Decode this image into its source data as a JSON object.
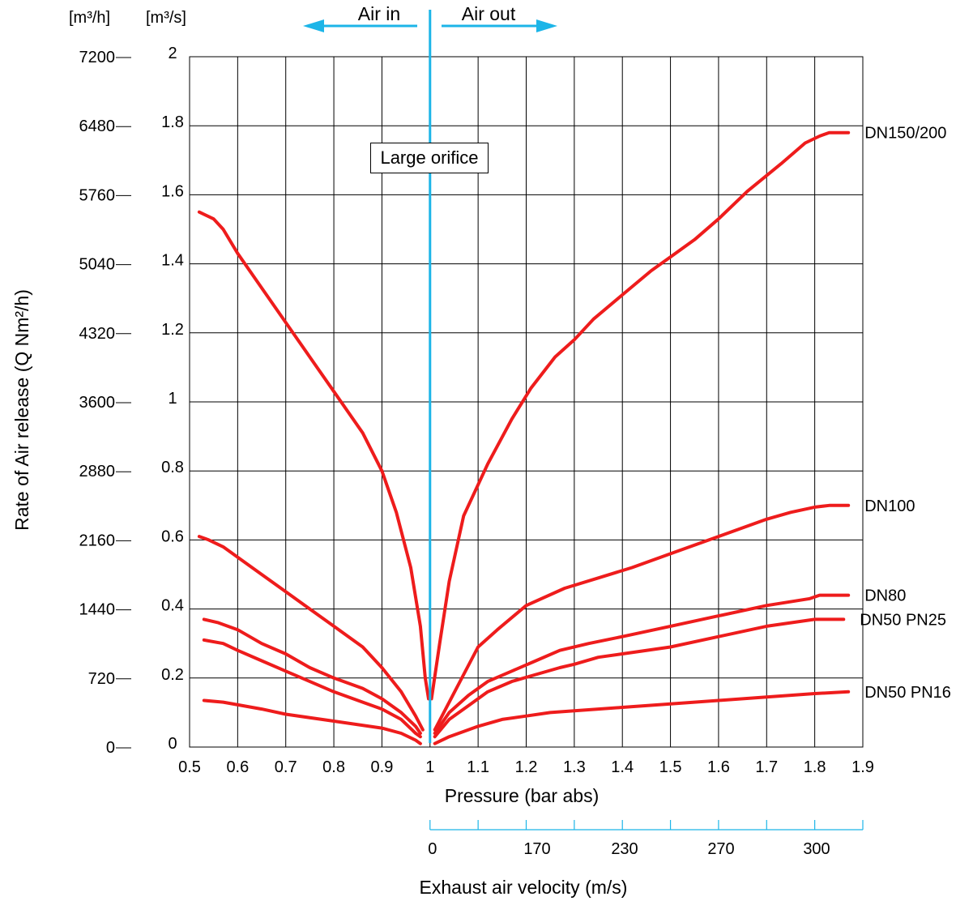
{
  "chart_data": {
    "type": "line",
    "xlabel": "Pressure (bar abs)",
    "ylabel": "Rate of Air release (Q Nm²/h)",
    "xlim": [
      0.5,
      1.9
    ],
    "ylim": [
      0,
      2
    ],
    "grid": true,
    "x_ticks": [
      "0.5",
      "0.6",
      "0.7",
      "0.8",
      "0.9",
      "1",
      "1.1",
      "1.2",
      "1.3",
      "1.4",
      "1.5",
      "1.6",
      "1.7",
      "1.8",
      "1.9"
    ],
    "y_ticks_m3s": [
      "0",
      "0.2",
      "0.4",
      "0.6",
      "0.8",
      "1",
      "1.2",
      "1.4",
      "1.6",
      "1.8",
      "2"
    ],
    "y_ticks_m3h": [
      "0",
      "720",
      "1440",
      "2160",
      "2880",
      "3600",
      "4320",
      "5040",
      "5760",
      "6480",
      "7200"
    ],
    "y_units_m3h": "[m³/h]",
    "y_units_m3s": "[m³/s]",
    "direction_in": "Air in",
    "direction_out": "Air out",
    "annotation": "Large orifice",
    "velocity_axis": {
      "label": "Exhaust air velocity (m/s)",
      "tick_labels": [
        "0",
        "170",
        "230",
        "270",
        "300"
      ]
    },
    "series": [
      {
        "name": "DN150/200",
        "color": "#ee1c1c",
        "intake": [
          [
            0.52,
            1.55
          ],
          [
            0.55,
            1.53
          ],
          [
            0.57,
            1.5
          ],
          [
            0.6,
            1.43
          ],
          [
            0.65,
            1.33
          ],
          [
            0.7,
            1.23
          ],
          [
            0.75,
            1.13
          ],
          [
            0.8,
            1.03
          ],
          [
            0.86,
            0.91
          ],
          [
            0.9,
            0.8
          ],
          [
            0.93,
            0.68
          ],
          [
            0.96,
            0.52
          ],
          [
            0.98,
            0.35
          ],
          [
            0.99,
            0.2
          ],
          [
            0.997,
            0.14
          ]
        ],
        "exhaust": [
          [
            1.003,
            0.14
          ],
          [
            1.02,
            0.3
          ],
          [
            1.04,
            0.48
          ],
          [
            1.07,
            0.67
          ],
          [
            1.12,
            0.82
          ],
          [
            1.17,
            0.95
          ],
          [
            1.21,
            1.04
          ],
          [
            1.26,
            1.13
          ],
          [
            1.3,
            1.18
          ],
          [
            1.34,
            1.24
          ],
          [
            1.4,
            1.31
          ],
          [
            1.46,
            1.38
          ],
          [
            1.5,
            1.42
          ],
          [
            1.55,
            1.47
          ],
          [
            1.6,
            1.53
          ],
          [
            1.66,
            1.61
          ],
          [
            1.73,
            1.69
          ],
          [
            1.78,
            1.75
          ],
          [
            1.81,
            1.77
          ],
          [
            1.83,
            1.78
          ],
          [
            1.87,
            1.78
          ]
        ]
      },
      {
        "name": "DN100",
        "color": "#ee1c1c",
        "intake": [
          [
            0.52,
            0.61
          ],
          [
            0.54,
            0.6
          ],
          [
            0.57,
            0.58
          ],
          [
            0.6,
            0.55
          ],
          [
            0.65,
            0.5
          ],
          [
            0.7,
            0.45
          ],
          [
            0.75,
            0.4
          ],
          [
            0.8,
            0.35
          ],
          [
            0.86,
            0.29
          ],
          [
            0.9,
            0.23
          ],
          [
            0.94,
            0.16
          ],
          [
            0.97,
            0.09
          ],
          [
            0.985,
            0.05
          ]
        ],
        "exhaust": [
          [
            1.01,
            0.05
          ],
          [
            1.04,
            0.13
          ],
          [
            1.07,
            0.21
          ],
          [
            1.1,
            0.29
          ],
          [
            1.14,
            0.34
          ],
          [
            1.2,
            0.41
          ],
          [
            1.28,
            0.46
          ],
          [
            1.35,
            0.49
          ],
          [
            1.42,
            0.52
          ],
          [
            1.5,
            0.56
          ],
          [
            1.6,
            0.61
          ],
          [
            1.7,
            0.66
          ],
          [
            1.75,
            0.68
          ],
          [
            1.8,
            0.695
          ],
          [
            1.83,
            0.7
          ],
          [
            1.87,
            0.7
          ]
        ]
      },
      {
        "name": "DN80",
        "color": "#ee1c1c",
        "intake": [
          [
            0.53,
            0.37
          ],
          [
            0.56,
            0.36
          ],
          [
            0.6,
            0.34
          ],
          [
            0.65,
            0.3
          ],
          [
            0.7,
            0.27
          ],
          [
            0.75,
            0.23
          ],
          [
            0.8,
            0.2
          ],
          [
            0.86,
            0.17
          ],
          [
            0.9,
            0.14
          ],
          [
            0.94,
            0.1
          ],
          [
            0.97,
            0.06
          ],
          [
            0.98,
            0.04
          ]
        ],
        "exhaust": [
          [
            1.01,
            0.04
          ],
          [
            1.04,
            0.1
          ],
          [
            1.08,
            0.15
          ],
          [
            1.12,
            0.19
          ],
          [
            1.17,
            0.22
          ],
          [
            1.22,
            0.25
          ],
          [
            1.27,
            0.28
          ],
          [
            1.33,
            0.3
          ],
          [
            1.4,
            0.32
          ],
          [
            1.5,
            0.35
          ],
          [
            1.6,
            0.38
          ],
          [
            1.7,
            0.41
          ],
          [
            1.79,
            0.43
          ],
          [
            1.81,
            0.44
          ],
          [
            1.87,
            0.44
          ]
        ]
      },
      {
        "name": "DN50 PN25",
        "color": "#ee1c1c",
        "intake": [
          [
            0.53,
            0.31
          ],
          [
            0.57,
            0.3
          ],
          [
            0.6,
            0.28
          ],
          [
            0.65,
            0.25
          ],
          [
            0.7,
            0.22
          ],
          [
            0.75,
            0.19
          ],
          [
            0.8,
            0.16
          ],
          [
            0.86,
            0.13
          ],
          [
            0.9,
            0.11
          ],
          [
            0.94,
            0.08
          ],
          [
            0.97,
            0.04
          ],
          [
            0.98,
            0.03
          ]
        ],
        "exhaust": [
          [
            1.01,
            0.03
          ],
          [
            1.04,
            0.08
          ],
          [
            1.08,
            0.12
          ],
          [
            1.12,
            0.16
          ],
          [
            1.17,
            0.19
          ],
          [
            1.22,
            0.21
          ],
          [
            1.27,
            0.23
          ],
          [
            1.3,
            0.24
          ],
          [
            1.35,
            0.26
          ],
          [
            1.4,
            0.27
          ],
          [
            1.5,
            0.29
          ],
          [
            1.6,
            0.32
          ],
          [
            1.7,
            0.35
          ],
          [
            1.8,
            0.37
          ],
          [
            1.86,
            0.37
          ]
        ]
      },
      {
        "name": "DN50 PN16",
        "color": "#ee1c1c",
        "intake": [
          [
            0.53,
            0.135
          ],
          [
            0.57,
            0.13
          ],
          [
            0.65,
            0.11
          ],
          [
            0.7,
            0.095
          ],
          [
            0.8,
            0.075
          ],
          [
            0.9,
            0.055
          ],
          [
            0.94,
            0.04
          ],
          [
            0.97,
            0.02
          ],
          [
            0.98,
            0.01
          ]
        ],
        "exhaust": [
          [
            1.01,
            0.01
          ],
          [
            1.04,
            0.03
          ],
          [
            1.1,
            0.06
          ],
          [
            1.15,
            0.08
          ],
          [
            1.2,
            0.09
          ],
          [
            1.25,
            0.1
          ],
          [
            1.3,
            0.105
          ],
          [
            1.4,
            0.115
          ],
          [
            1.5,
            0.125
          ],
          [
            1.6,
            0.135
          ],
          [
            1.7,
            0.145
          ],
          [
            1.8,
            0.155
          ],
          [
            1.87,
            0.16
          ]
        ]
      }
    ]
  },
  "colors": {
    "curve": "#ee1c1c",
    "accent": "#1cb5e8",
    "grid": "#000000"
  }
}
